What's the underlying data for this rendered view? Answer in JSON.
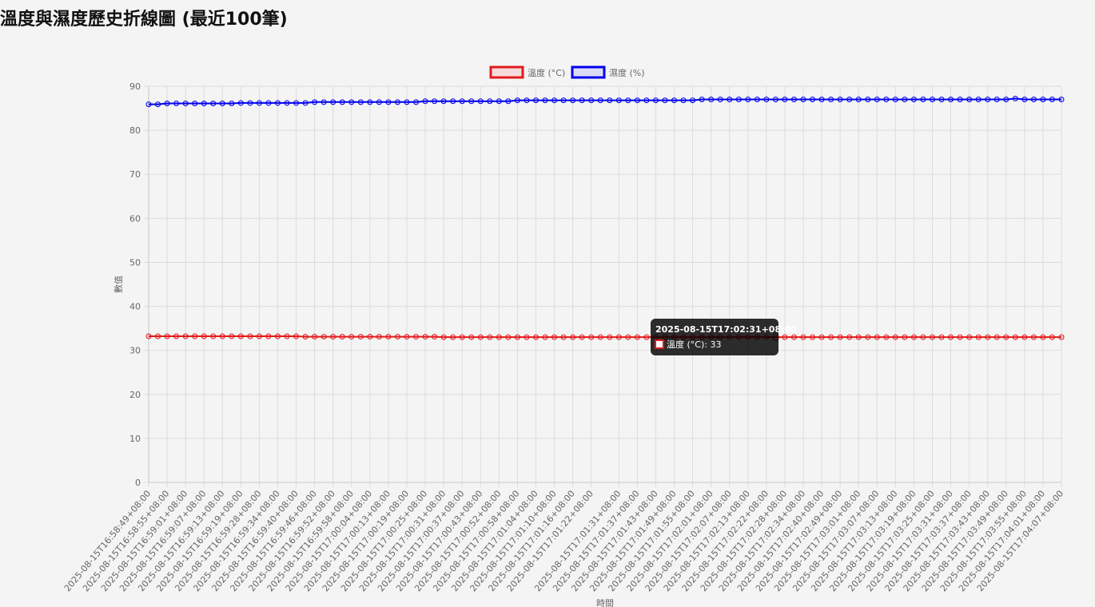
{
  "page": {
    "title": "溫度與濕度歷史折線圖 (最近100筆)"
  },
  "chart_data": {
    "type": "line",
    "xlabel": "時間",
    "ylabel": "數值",
    "ylim": [
      0,
      90
    ],
    "yticks": [
      0,
      10,
      20,
      30,
      40,
      50,
      60,
      70,
      80,
      90
    ],
    "grid": true,
    "legend_position": "top-center",
    "x_tick_labels": [
      "2025-08-15T16:58:49+08:00",
      "2025-08-15T16:58:55+08:00",
      "2025-08-15T16:59:01+08:00",
      "2025-08-15T16:59:07+08:00",
      "2025-08-15T16:59:13+08:00",
      "2025-08-15T16:59:19+08:00",
      "2025-08-15T16:59:28+08:00",
      "2025-08-15T16:59:34+08:00",
      "2025-08-15T16:59:40+08:00",
      "2025-08-15T16:59:46+08:00",
      "2025-08-15T16:59:52+08:00",
      "2025-08-15T16:59:58+08:00",
      "2025-08-15T17:00:04+08:00",
      "2025-08-15T17:00:13+08:00",
      "2025-08-15T17:00:19+08:00",
      "2025-08-15T17:00:25+08:00",
      "2025-08-15T17:00:31+08:00",
      "2025-08-15T17:00:37+08:00",
      "2025-08-15T17:00:43+08:00",
      "2025-08-15T17:00:52+08:00",
      "2025-08-15T17:00:58+08:00",
      "2025-08-15T17:01:04+08:00",
      "2025-08-15T17:01:10+08:00",
      "2025-08-15T17:01:16+08:00",
      "2025-08-15T17:01:22+08:00",
      "2025-08-15T17:01:31+08:00",
      "2025-08-15T17:01:37+08:00",
      "2025-08-15T17:01:43+08:00",
      "2025-08-15T17:01:49+08:00",
      "2025-08-15T17:01:55+08:00",
      "2025-08-15T17:02:01+08:00",
      "2025-08-15T17:02:07+08:00",
      "2025-08-15T17:02:13+08:00",
      "2025-08-15T17:02:22+08:00",
      "2025-08-15T17:02:28+08:00",
      "2025-08-15T17:02:34+08:00",
      "2025-08-15T17:02:40+08:00",
      "2025-08-15T17:02:49+08:00",
      "2025-08-15T17:03:01+08:00",
      "2025-08-15T17:03:07+08:00",
      "2025-08-15T17:03:13+08:00",
      "2025-08-15T17:03:19+08:00",
      "2025-08-15T17:03:25+08:00",
      "2025-08-15T17:03:31+08:00",
      "2025-08-15T17:03:37+08:00",
      "2025-08-15T17:03:43+08:00",
      "2025-08-15T17:03:49+08:00",
      "2025-08-15T17:03:55+08:00",
      "2025-08-15T17:04:01+08:00",
      "2025-08-15T17:04:07+08:00"
    ],
    "series": [
      {
        "name": "溫度 (°C)",
        "color": "#e31a1c",
        "fill": "rgba(255,0,0,0.1)",
        "values": [
          33.2,
          33.2,
          33.2,
          33.2,
          33.2,
          33.2,
          33.2,
          33.2,
          33.2,
          33.2,
          33.2,
          33.2,
          33.2,
          33.2,
          33.2,
          33.2,
          33.2,
          33.1,
          33.1,
          33.1,
          33.1,
          33.1,
          33.1,
          33.1,
          33.1,
          33.1,
          33.1,
          33.1,
          33.1,
          33.1,
          33.1,
          33.1,
          33,
          33,
          33,
          33,
          33,
          33,
          33,
          33,
          33,
          33,
          33,
          33,
          33,
          33,
          33,
          33,
          33,
          33,
          33,
          33,
          33,
          33,
          33,
          33,
          33,
          33,
          33,
          33,
          33,
          33,
          33,
          33,
          33,
          33,
          33,
          33,
          33,
          33,
          33,
          33,
          33,
          33,
          33,
          33,
          33,
          33,
          33,
          33,
          33,
          33,
          33,
          33,
          33,
          33,
          33,
          33,
          33,
          33,
          33,
          33,
          33,
          33,
          33,
          33,
          33,
          33,
          33,
          33
        ]
      },
      {
        "name": "濕度 (%)",
        "color": "#0000ee",
        "fill": "rgba(0,0,255,0.1)",
        "values": [
          85.9,
          85.9,
          86.1,
          86.1,
          86.1,
          86.1,
          86.1,
          86.1,
          86.1,
          86.1,
          86.2,
          86.2,
          86.2,
          86.2,
          86.2,
          86.2,
          86.2,
          86.2,
          86.4,
          86.4,
          86.4,
          86.4,
          86.4,
          86.4,
          86.4,
          86.4,
          86.4,
          86.4,
          86.4,
          86.4,
          86.6,
          86.6,
          86.6,
          86.6,
          86.6,
          86.6,
          86.6,
          86.6,
          86.6,
          86.6,
          86.8,
          86.8,
          86.8,
          86.8,
          86.8,
          86.8,
          86.8,
          86.8,
          86.8,
          86.8,
          86.8,
          86.8,
          86.8,
          86.8,
          86.8,
          86.8,
          86.8,
          86.8,
          86.8,
          86.8,
          87,
          87,
          87,
          87,
          87,
          87,
          87,
          87,
          87,
          87,
          87,
          87,
          87,
          87,
          87,
          87,
          87,
          87,
          87,
          87,
          87,
          87,
          87,
          87,
          87,
          87,
          87,
          87,
          87,
          87,
          87,
          87,
          87,
          87,
          87.2,
          87,
          87,
          87,
          87,
          87
        ]
      }
    ],
    "tooltip": {
      "title": "2025-08-15T17:02:31+08:00",
      "body": "溫度 (°C): 33",
      "series_index": 0,
      "point_index": 68
    }
  }
}
